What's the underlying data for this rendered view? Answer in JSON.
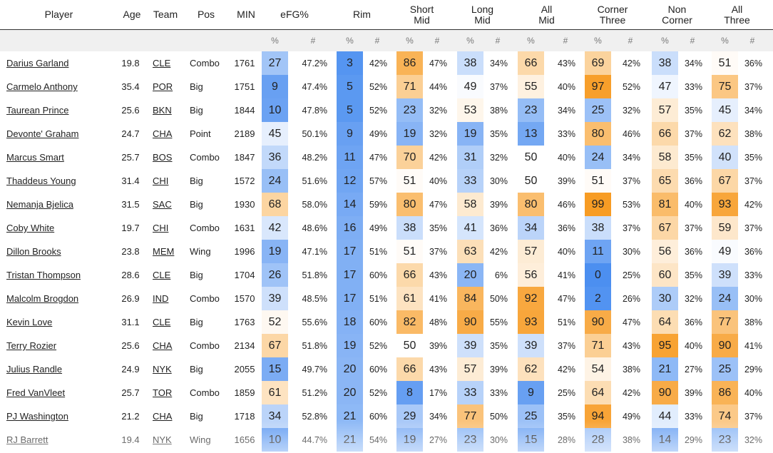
{
  "headers": {
    "player": "Player",
    "age": "Age",
    "team": "Team",
    "pos": "Pos",
    "min": "MIN",
    "efg": "eFG%",
    "rim": "Rim",
    "short_mid": "Short\nMid",
    "long_mid": "Long\nMid",
    "all_mid": "All\nMid",
    "corner_three": "Corner\nThree",
    "non_corner": "Non\nCorner",
    "all_three": "All\nThree"
  },
  "subheaders": {
    "pct": "%",
    "raw": "#"
  },
  "colors": {
    "blue_strong": "#4c8ff0",
    "orange_strong": "#f79a20",
    "neutral": "#ffffff"
  },
  "rows": [
    {
      "player": "Darius Garland",
      "age": "19.8",
      "team": "CLE",
      "pos": "Combo",
      "min": "1761",
      "efg_p": 27,
      "efg_v": "47.2%",
      "rim_p": 3,
      "rim_v": "42%",
      "sm_p": 86,
      "sm_v": "47%",
      "lm_p": 38,
      "lm_v": "34%",
      "am_p": 66,
      "am_v": "43%",
      "ct_p": 69,
      "ct_v": "42%",
      "nc_p": 38,
      "nc_v": "34%",
      "at_p": 51,
      "at_v": "36%"
    },
    {
      "player": "Carmelo Anthony",
      "age": "35.4",
      "team": "POR",
      "pos": "Big",
      "min": "1751",
      "efg_p": 9,
      "efg_v": "47.4%",
      "rim_p": 5,
      "rim_v": "52%",
      "sm_p": 71,
      "sm_v": "44%",
      "lm_p": 49,
      "lm_v": "37%",
      "am_p": 55,
      "am_v": "40%",
      "ct_p": 97,
      "ct_v": "52%",
      "nc_p": 47,
      "nc_v": "33%",
      "at_p": 75,
      "at_v": "37%"
    },
    {
      "player": "Taurean Prince",
      "age": "25.6",
      "team": "BKN",
      "pos": "Big",
      "min": "1844",
      "efg_p": 10,
      "efg_v": "47.8%",
      "rim_p": 5,
      "rim_v": "52%",
      "sm_p": 23,
      "sm_v": "32%",
      "lm_p": 53,
      "lm_v": "38%",
      "am_p": 23,
      "am_v": "34%",
      "ct_p": 25,
      "ct_v": "32%",
      "nc_p": 57,
      "nc_v": "35%",
      "at_p": 45,
      "at_v": "34%"
    },
    {
      "player": "Devonte' Graham",
      "age": "24.7",
      "team": "CHA",
      "pos": "Point",
      "min": "2189",
      "efg_p": 45,
      "efg_v": "50.1%",
      "rim_p": 9,
      "rim_v": "49%",
      "sm_p": 19,
      "sm_v": "32%",
      "lm_p": 19,
      "lm_v": "35%",
      "am_p": 13,
      "am_v": "33%",
      "ct_p": 80,
      "ct_v": "46%",
      "nc_p": 66,
      "nc_v": "37%",
      "at_p": 62,
      "at_v": "38%"
    },
    {
      "player": "Marcus Smart",
      "age": "25.7",
      "team": "BOS",
      "pos": "Combo",
      "min": "1847",
      "efg_p": 36,
      "efg_v": "48.2%",
      "rim_p": 11,
      "rim_v": "47%",
      "sm_p": 70,
      "sm_v": "42%",
      "lm_p": 31,
      "lm_v": "32%",
      "am_p": 50,
      "am_v": "40%",
      "ct_p": 24,
      "ct_v": "34%",
      "nc_p": 58,
      "nc_v": "35%",
      "at_p": 40,
      "at_v": "35%"
    },
    {
      "player": "Thaddeus Young",
      "age": "31.4",
      "team": "CHI",
      "pos": "Big",
      "min": "1572",
      "efg_p": 24,
      "efg_v": "51.6%",
      "rim_p": 12,
      "rim_v": "57%",
      "sm_p": 51,
      "sm_v": "40%",
      "lm_p": 33,
      "lm_v": "30%",
      "am_p": 50,
      "am_v": "39%",
      "ct_p": 51,
      "ct_v": "37%",
      "nc_p": 65,
      "nc_v": "36%",
      "at_p": 67,
      "at_v": "37%"
    },
    {
      "player": "Nemanja Bjelica",
      "age": "31.5",
      "team": "SAC",
      "pos": "Big",
      "min": "1930",
      "efg_p": 68,
      "efg_v": "58.0%",
      "rim_p": 14,
      "rim_v": "59%",
      "sm_p": 80,
      "sm_v": "47%",
      "lm_p": 58,
      "lm_v": "39%",
      "am_p": 80,
      "am_v": "46%",
      "ct_p": 99,
      "ct_v": "53%",
      "nc_p": 81,
      "nc_v": "40%",
      "at_p": 93,
      "at_v": "42%"
    },
    {
      "player": "Coby White",
      "age": "19.7",
      "team": "CHI",
      "pos": "Combo",
      "min": "1631",
      "efg_p": 42,
      "efg_v": "48.6%",
      "rim_p": 16,
      "rim_v": "49%",
      "sm_p": 38,
      "sm_v": "35%",
      "lm_p": 41,
      "lm_v": "36%",
      "am_p": 34,
      "am_v": "36%",
      "ct_p": 38,
      "ct_v": "37%",
      "nc_p": 67,
      "nc_v": "37%",
      "at_p": 59,
      "at_v": "37%"
    },
    {
      "player": "Dillon Brooks",
      "age": "23.8",
      "team": "MEM",
      "pos": "Wing",
      "min": "1996",
      "efg_p": 19,
      "efg_v": "47.1%",
      "rim_p": 17,
      "rim_v": "51%",
      "sm_p": 51,
      "sm_v": "37%",
      "lm_p": 63,
      "lm_v": "42%",
      "am_p": 57,
      "am_v": "40%",
      "ct_p": 11,
      "ct_v": "30%",
      "nc_p": 56,
      "nc_v": "36%",
      "at_p": 49,
      "at_v": "36%"
    },
    {
      "player": "Tristan Thompson",
      "age": "28.6",
      "team": "CLE",
      "pos": "Big",
      "min": "1704",
      "efg_p": 26,
      "efg_v": "51.8%",
      "rim_p": 17,
      "rim_v": "60%",
      "sm_p": 66,
      "sm_v": "43%",
      "lm_p": 20,
      "lm_v": "6%",
      "am_p": 56,
      "am_v": "41%",
      "ct_p": 0,
      "ct_v": "25%",
      "nc_p": 60,
      "nc_v": "35%",
      "at_p": 39,
      "at_v": "33%"
    },
    {
      "player": "Malcolm Brogdon",
      "age": "26.9",
      "team": "IND",
      "pos": "Combo",
      "min": "1570",
      "efg_p": 39,
      "efg_v": "48.5%",
      "rim_p": 17,
      "rim_v": "51%",
      "sm_p": 61,
      "sm_v": "41%",
      "lm_p": 84,
      "lm_v": "50%",
      "am_p": 92,
      "am_v": "47%",
      "ct_p": 2,
      "ct_v": "26%",
      "nc_p": 30,
      "nc_v": "32%",
      "at_p": 24,
      "at_v": "30%"
    },
    {
      "player": "Kevin Love",
      "age": "31.1",
      "team": "CLE",
      "pos": "Big",
      "min": "1763",
      "efg_p": 52,
      "efg_v": "55.6%",
      "rim_p": 18,
      "rim_v": "60%",
      "sm_p": 82,
      "sm_v": "48%",
      "lm_p": 90,
      "lm_v": "55%",
      "am_p": 93,
      "am_v": "51%",
      "ct_p": 90,
      "ct_v": "47%",
      "nc_p": 64,
      "nc_v": "36%",
      "at_p": 77,
      "at_v": "38%"
    },
    {
      "player": "Terry Rozier",
      "age": "25.6",
      "team": "CHA",
      "pos": "Combo",
      "min": "2134",
      "efg_p": 67,
      "efg_v": "51.8%",
      "rim_p": 19,
      "rim_v": "52%",
      "sm_p": 50,
      "sm_v": "39%",
      "lm_p": 39,
      "lm_v": "35%",
      "am_p": 39,
      "am_v": "37%",
      "ct_p": 71,
      "ct_v": "43%",
      "nc_p": 95,
      "nc_v": "40%",
      "at_p": 90,
      "at_v": "41%"
    },
    {
      "player": "Julius Randle",
      "age": "24.9",
      "team": "NYK",
      "pos": "Big",
      "min": "2055",
      "efg_p": 15,
      "efg_v": "49.7%",
      "rim_p": 20,
      "rim_v": "60%",
      "sm_p": 66,
      "sm_v": "43%",
      "lm_p": 57,
      "lm_v": "39%",
      "am_p": 62,
      "am_v": "42%",
      "ct_p": 54,
      "ct_v": "38%",
      "nc_p": 21,
      "nc_v": "27%",
      "at_p": 25,
      "at_v": "29%"
    },
    {
      "player": "Fred VanVleet",
      "age": "25.7",
      "team": "TOR",
      "pos": "Combo",
      "min": "1859",
      "efg_p": 61,
      "efg_v": "51.2%",
      "rim_p": 20,
      "rim_v": "52%",
      "sm_p": 8,
      "sm_v": "17%",
      "lm_p": 33,
      "lm_v": "33%",
      "am_p": 9,
      "am_v": "25%",
      "ct_p": 64,
      "ct_v": "42%",
      "nc_p": 90,
      "nc_v": "39%",
      "at_p": 86,
      "at_v": "40%"
    },
    {
      "player": "PJ Washington",
      "age": "21.2",
      "team": "CHA",
      "pos": "Big",
      "min": "1718",
      "efg_p": 34,
      "efg_v": "52.8%",
      "rim_p": 21,
      "rim_v": "60%",
      "sm_p": 29,
      "sm_v": "34%",
      "lm_p": 77,
      "lm_v": "50%",
      "am_p": 25,
      "am_v": "35%",
      "ct_p": 94,
      "ct_v": "49%",
      "nc_p": 44,
      "nc_v": "33%",
      "at_p": 74,
      "at_v": "37%"
    },
    {
      "player": "RJ Barrett",
      "age": "19.4",
      "team": "NYK",
      "pos": "Wing",
      "min": "1656",
      "efg_p": 10,
      "efg_v": "44.7%",
      "rim_p": 21,
      "rim_v": "54%",
      "sm_p": 19,
      "sm_v": "27%",
      "lm_p": 23,
      "lm_v": "30%",
      "am_p": 15,
      "am_v": "28%",
      "ct_p": 28,
      "ct_v": "38%",
      "nc_p": 14,
      "nc_v": "29%",
      "at_p": 23,
      "at_v": "32%"
    }
  ]
}
